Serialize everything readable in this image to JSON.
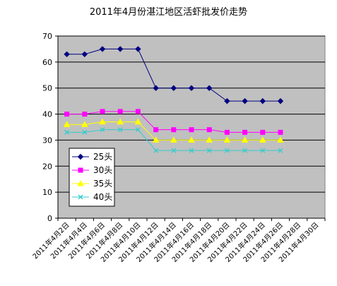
{
  "chart_data": {
    "type": "line",
    "title": "2011年4月份湛江地区活虾批发价走势",
    "categories": [
      "2011年4月2日",
      "2011年4月4日",
      "2011年4月6日",
      "2011年4月8日",
      "2011年4月10日",
      "2011年4月12日",
      "2011年4月14日",
      "2011年4月16日",
      "2011年4月18日",
      "2011年4月20日",
      "2011年4月22日",
      "2011年4月24日",
      "2011年4月26日",
      "2011年4月28日",
      "2011年4月30日"
    ],
    "series": [
      {
        "name": "25头",
        "color": "#000080",
        "marker": "diamond",
        "values": [
          63,
          63,
          65,
          65,
          65,
          50,
          50,
          50,
          50,
          45,
          45,
          45,
          45,
          null,
          null
        ]
      },
      {
        "name": "30头",
        "color": "#ff00ff",
        "marker": "square",
        "values": [
          40,
          40,
          41,
          41,
          41,
          34,
          34,
          34,
          34,
          33,
          33,
          33,
          33,
          null,
          null
        ]
      },
      {
        "name": "35头",
        "color": "#ffff00",
        "marker": "triangle",
        "values": [
          36,
          36,
          37,
          37,
          37,
          30,
          30,
          30,
          30,
          30,
          30,
          30,
          30,
          null,
          null
        ]
      },
      {
        "name": "40头",
        "color": "#33cccc",
        "marker": "x",
        "values": [
          33,
          33,
          34,
          34,
          34,
          26,
          26,
          26,
          26,
          26,
          26,
          26,
          26,
          null,
          null
        ]
      }
    ],
    "ylim": [
      0,
      70
    ],
    "yticks": [
      0,
      10,
      20,
      30,
      40,
      50,
      60,
      70
    ],
    "grid": true,
    "plot_background": "#c0c0c0",
    "legend_position": "lower-left inside plot"
  }
}
